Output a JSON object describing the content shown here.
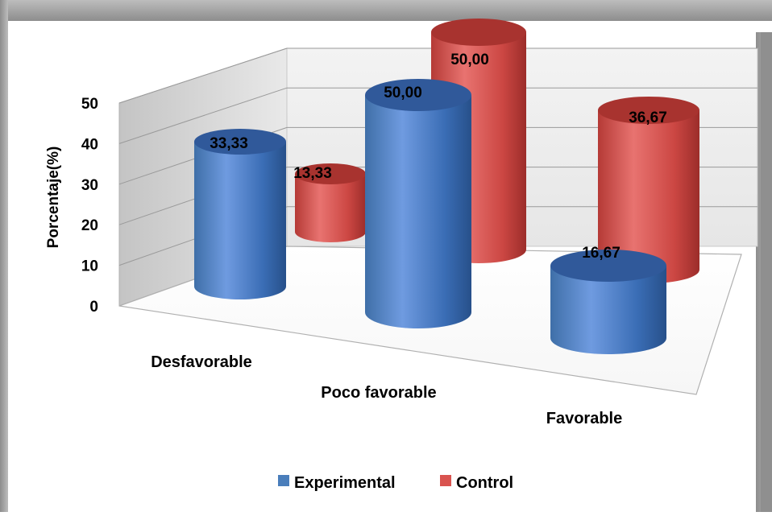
{
  "chart_data": {
    "type": "bar",
    "style": "3d-cylinder",
    "categories": [
      "Desfavorable",
      "Poco favorable",
      "Favorable"
    ],
    "series": [
      {
        "name": "Experimental",
        "values": [
          33.33,
          50.0,
          16.67
        ],
        "labels": [
          "33,33",
          "50,00",
          "16,67"
        ],
        "color": "#4a7ebb"
      },
      {
        "name": "Control",
        "values": [
          13.33,
          50.0,
          36.67
        ],
        "labels": [
          "13,33",
          "50,00",
          "36,67"
        ],
        "color": "#d9534f"
      }
    ],
    "title": "",
    "xlabel": "",
    "ylabel": "Porcentaje(%)",
    "ylim": [
      0,
      50
    ],
    "yticks": [
      "0",
      "10",
      "20",
      "30",
      "40",
      "50"
    ],
    "grid": true,
    "legend": "bottom"
  }
}
